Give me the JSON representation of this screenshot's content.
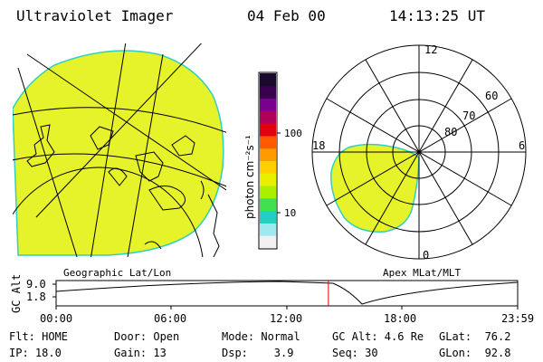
{
  "header": {
    "instrument": "Ultraviolet Imager",
    "date": "04 Feb 00",
    "time": "14:13:25 UT"
  },
  "colorbar": {
    "unit_label": "photon cm⁻²s⁻¹",
    "ticks": [
      "100",
      "10"
    ],
    "colors": [
      "#1a0a2e",
      "#3a0050",
      "#7a0090",
      "#b0005a",
      "#e00010",
      "#ff5a00",
      "#ff9a00",
      "#ffd000",
      "#e8f000",
      "#a8f000",
      "#40e050",
      "#20d0c0",
      "#a0e8f0",
      "#f0f0f0"
    ]
  },
  "geo_panel": {
    "label": "Geographic Lat/Lon",
    "fill_color": "#e6f22a"
  },
  "polar_panel": {
    "label": "Apex MLat/MLT",
    "mlt_labels": [
      "12",
      "18",
      "6",
      "0"
    ],
    "lat_labels": [
      "60",
      "70",
      "80"
    ],
    "fill_color": "#e6f22a"
  },
  "timeline": {
    "axis_title": "GC Alt",
    "y_ticks": [
      "9.0",
      "1.8"
    ],
    "x_ticks": [
      "00:00",
      "06:00",
      "12:00",
      "18:00",
      "23:59"
    ],
    "current_time_fraction": 0.59,
    "marker_color": "#e00000"
  },
  "status": {
    "flt": "Flt: HOME",
    "ip": "IP: 18.0",
    "door": "Door: Open",
    "gain": "Gain: 13",
    "mode": "Mode: Normal",
    "dsp": "Dsp:    3.9",
    "gcalt": "GC Alt: 4.6 Re",
    "seq": "Seq: 30",
    "glat": "GLat:  76.2",
    "glon": "GLon:  92.8"
  }
}
